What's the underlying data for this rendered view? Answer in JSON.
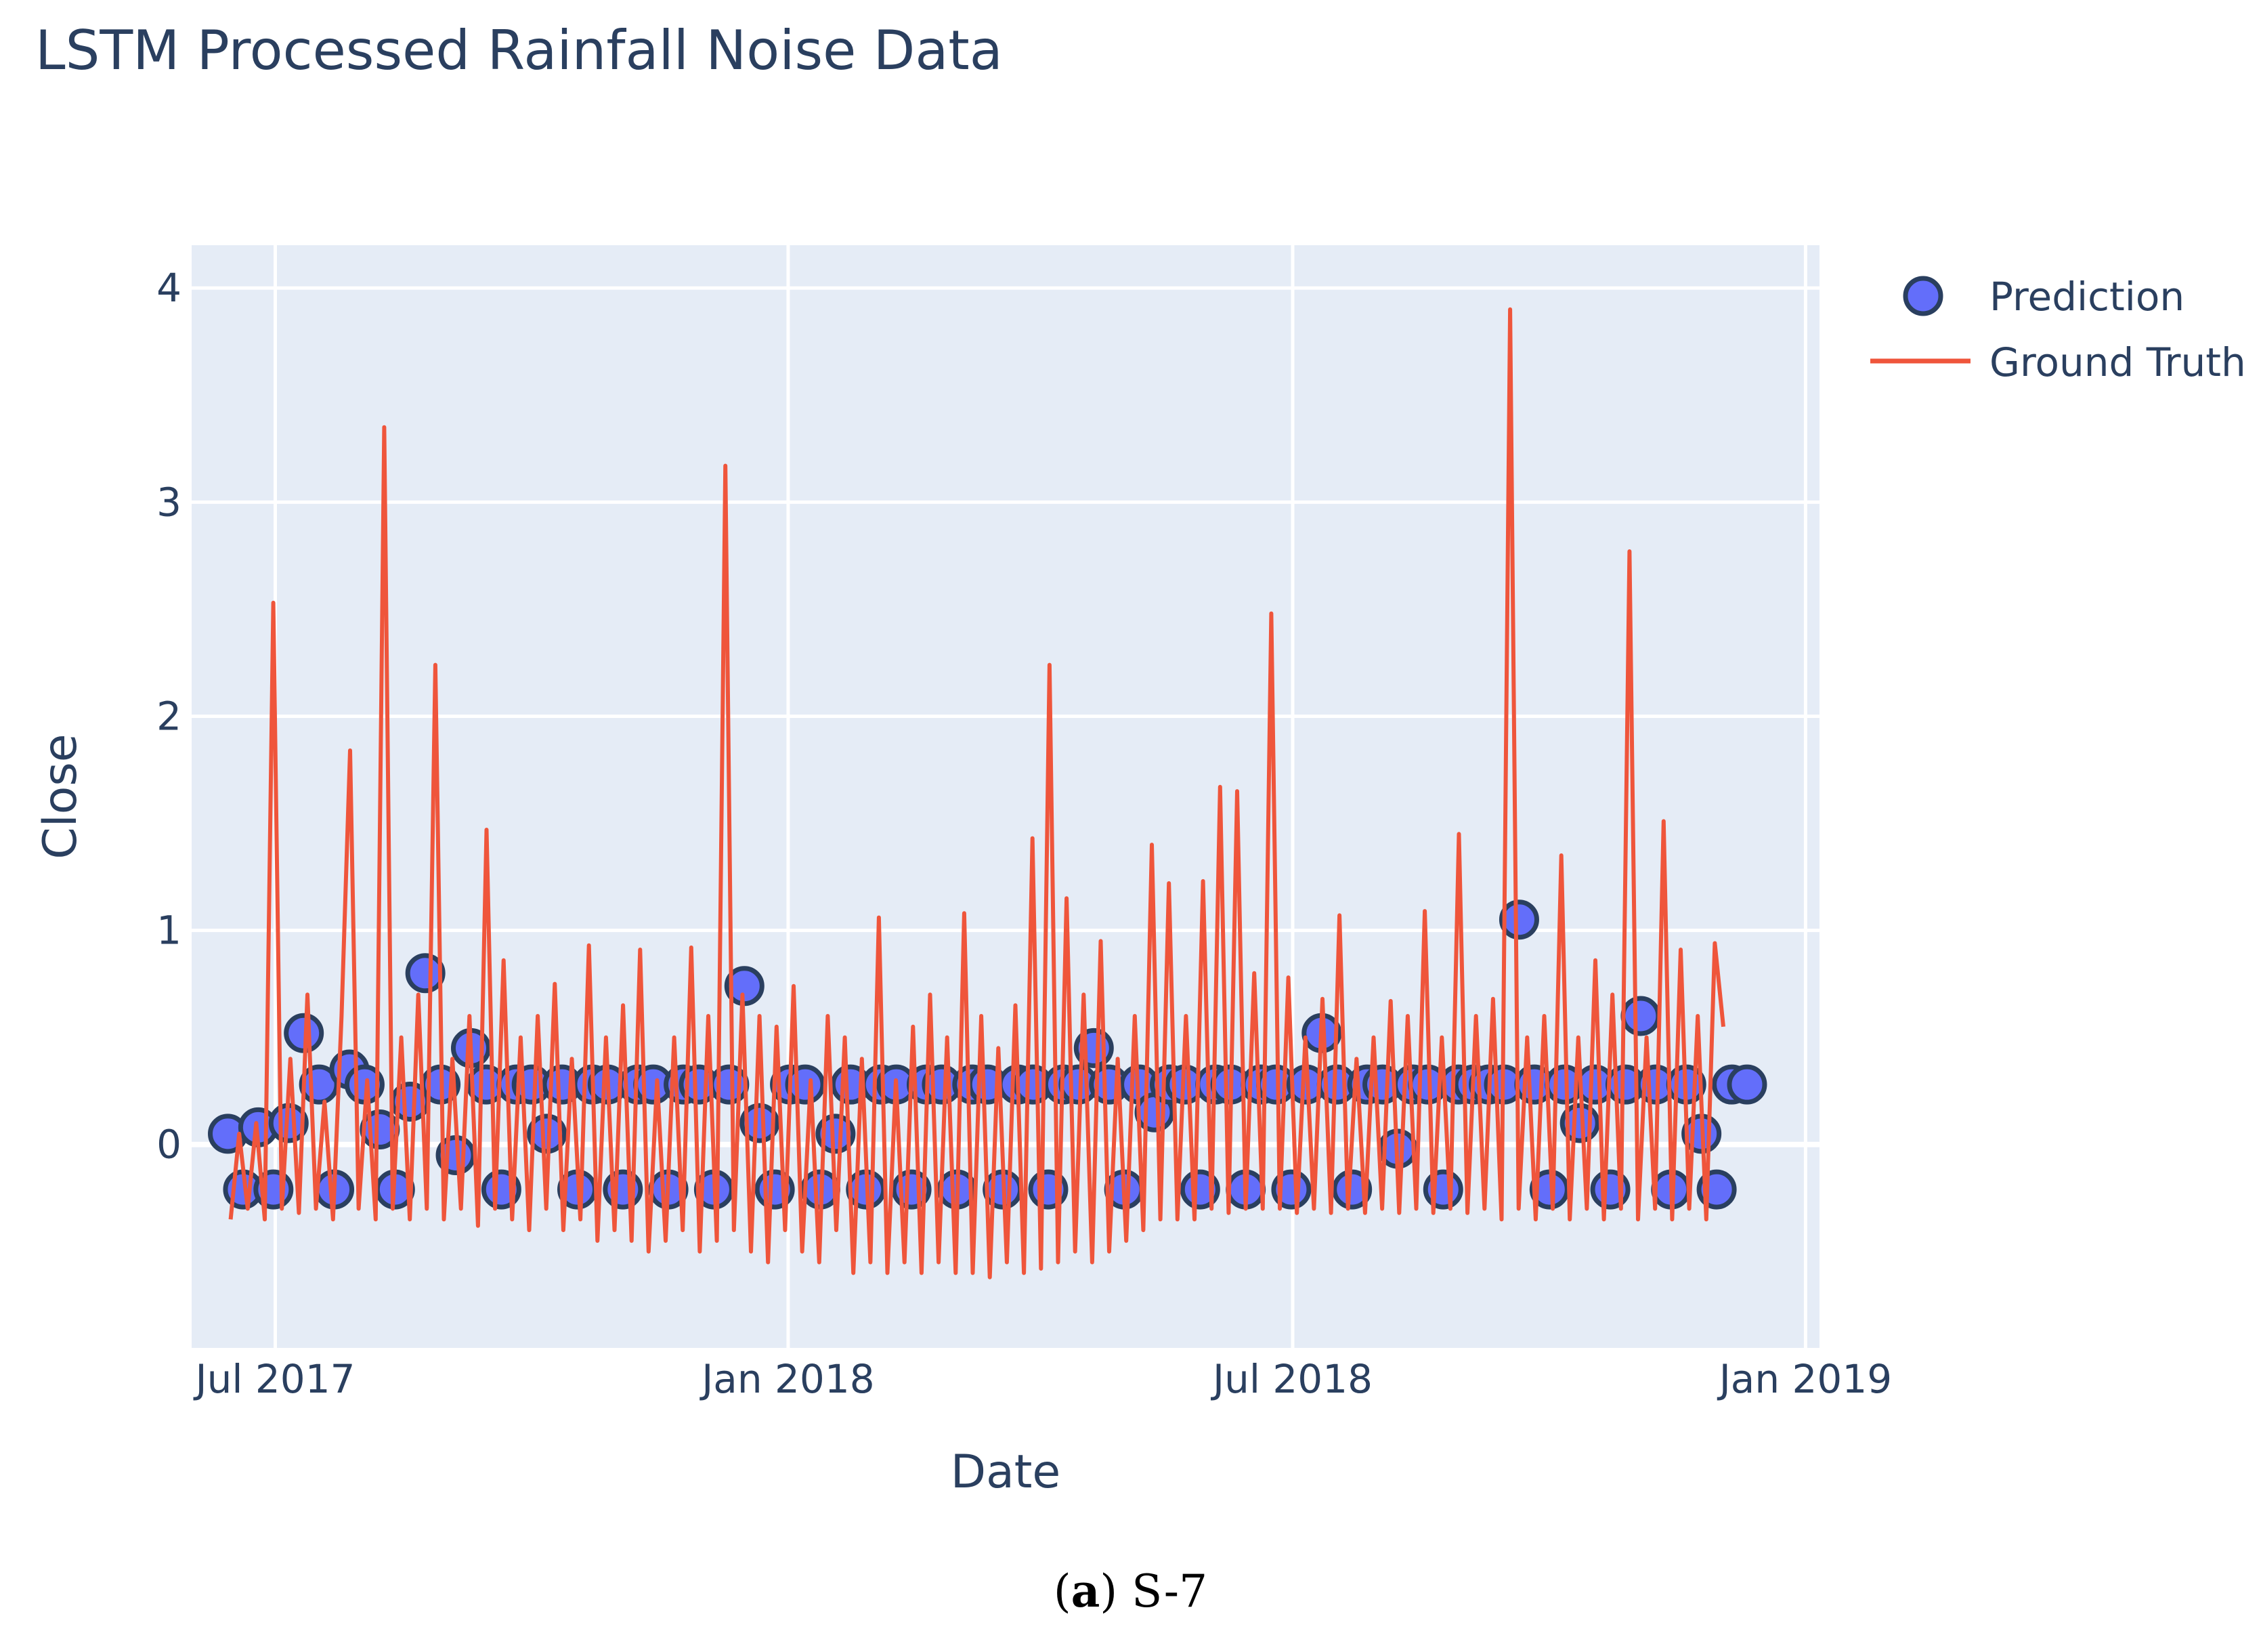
{
  "title": "LSTM Processed Rainfall Noise Data",
  "caption": {
    "label": "a",
    "text": "S-7"
  },
  "colors": {
    "plot_bg": "#e5ecf6",
    "grid": "#ffffff",
    "prediction_fill": "#636efa",
    "prediction_edge": "#2a3f5f",
    "ground_truth": "#ef553b",
    "text": "#2a3f5f"
  },
  "chart_data": {
    "type": "line",
    "xlabel": "Date",
    "ylabel": "Close",
    "x_range": [
      "2017-06-01",
      "2019-01-06"
    ],
    "ylim": [
      -0.95,
      4.2
    ],
    "x_ticks": [
      {
        "date": "2017-07-01",
        "label": "Jul 2017"
      },
      {
        "date": "2018-01-01",
        "label": "Jan 2018"
      },
      {
        "date": "2018-07-01",
        "label": "Jul 2018"
      },
      {
        "date": "2019-01-01",
        "label": "Jan 2019"
      }
    ],
    "y_ticks": [
      0,
      1,
      2,
      3,
      4
    ],
    "grid": true,
    "legend_position": "top-right",
    "series": [
      {
        "name": "Prediction",
        "mode": "markers",
        "x_start": "2017-06-14",
        "values": [
          0.05,
          -0.21,
          0.08,
          -0.21,
          0.1,
          0.52,
          0.28,
          -0.21,
          0.35,
          0.28,
          0.07,
          -0.21,
          0.2,
          0.8,
          0.28,
          -0.05,
          0.45,
          0.28,
          -0.21,
          0.28,
          0.28,
          0.05,
          0.28,
          -0.21,
          0.28,
          0.28,
          -0.21,
          0.28,
          0.28,
          -0.21,
          0.28,
          0.28,
          -0.21,
          0.28,
          0.74,
          0.1,
          -0.21,
          0.28,
          0.28,
          -0.21,
          0.05,
          0.28,
          -0.21,
          0.28,
          0.28,
          -0.21,
          0.28,
          0.28,
          -0.21,
          0.28,
          0.28,
          -0.21,
          0.28,
          0.28,
          -0.21,
          0.28,
          0.28,
          0.45,
          0.28,
          -0.21,
          0.28,
          0.15,
          0.28,
          0.28,
          -0.21,
          0.28,
          0.28,
          -0.21,
          0.28,
          0.28,
          -0.21,
          0.28,
          0.52,
          0.28,
          -0.21,
          0.28,
          0.28,
          -0.02,
          0.28,
          0.28,
          -0.21,
          0.28,
          0.28,
          0.28,
          0.28,
          1.05,
          0.28,
          -0.21,
          0.28,
          0.1,
          0.28,
          -0.21,
          0.28,
          0.6,
          0.28,
          -0.21,
          0.28,
          0.05,
          -0.21,
          0.28,
          0.28
        ],
        "color": "#636efa"
      },
      {
        "name": "Ground Truth",
        "mode": "lines",
        "x_start": "2017-06-15",
        "values": [
          -0.35,
          0.05,
          -0.3,
          0.1,
          -0.35,
          2.53,
          -0.3,
          0.4,
          -0.32,
          0.7,
          -0.3,
          0.2,
          -0.35,
          0.6,
          1.84,
          -0.3,
          0.3,
          -0.35,
          3.35,
          -0.3,
          0.5,
          -0.35,
          0.7,
          -0.3,
          2.24,
          -0.35,
          0.4,
          -0.3,
          0.6,
          -0.38,
          1.47,
          -0.3,
          0.86,
          -0.35,
          0.5,
          -0.4,
          0.6,
          -0.3,
          0.75,
          -0.4,
          0.4,
          -0.35,
          0.93,
          -0.45,
          0.5,
          -0.4,
          0.65,
          -0.45,
          0.91,
          -0.5,
          0.3,
          -0.45,
          0.5,
          -0.4,
          0.92,
          -0.5,
          0.6,
          -0.45,
          3.17,
          -0.4,
          0.7,
          -0.5,
          0.6,
          -0.55,
          0.55,
          -0.4,
          0.74,
          -0.5,
          0.3,
          -0.55,
          0.6,
          -0.4,
          0.5,
          -0.6,
          0.4,
          -0.55,
          1.06,
          -0.6,
          0.3,
          -0.55,
          0.55,
          -0.6,
          0.7,
          -0.55,
          0.5,
          -0.6,
          1.08,
          -0.6,
          0.6,
          -0.62,
          0.45,
          -0.55,
          0.65,
          -0.6,
          1.43,
          -0.58,
          2.24,
          -0.55,
          1.15,
          -0.5,
          0.7,
          -0.55,
          0.95,
          -0.5,
          0.4,
          -0.45,
          0.6,
          -0.4,
          1.4,
          -0.35,
          1.22,
          -0.35,
          0.6,
          -0.35,
          1.23,
          -0.3,
          1.67,
          -0.32,
          1.65,
          -0.3,
          0.8,
          -0.3,
          2.48,
          -0.3,
          0.78,
          -0.32,
          0.5,
          -0.3,
          0.68,
          -0.32,
          1.07,
          -0.3,
          0.4,
          -0.32,
          0.5,
          -0.3,
          0.67,
          -0.32,
          0.6,
          -0.3,
          1.09,
          -0.32,
          0.5,
          -0.3,
          1.45,
          -0.32,
          0.6,
          -0.3,
          0.68,
          -0.35,
          3.9,
          -0.3,
          0.5,
          -0.35,
          0.6,
          -0.3,
          1.35,
          -0.35,
          0.5,
          -0.3,
          0.86,
          -0.35,
          0.7,
          -0.3,
          2.77,
          -0.35,
          0.5,
          -0.3,
          1.51,
          -0.35,
          0.91,
          -0.3,
          0.6,
          -0.35,
          0.94,
          0.55
        ]
      }
    ]
  }
}
